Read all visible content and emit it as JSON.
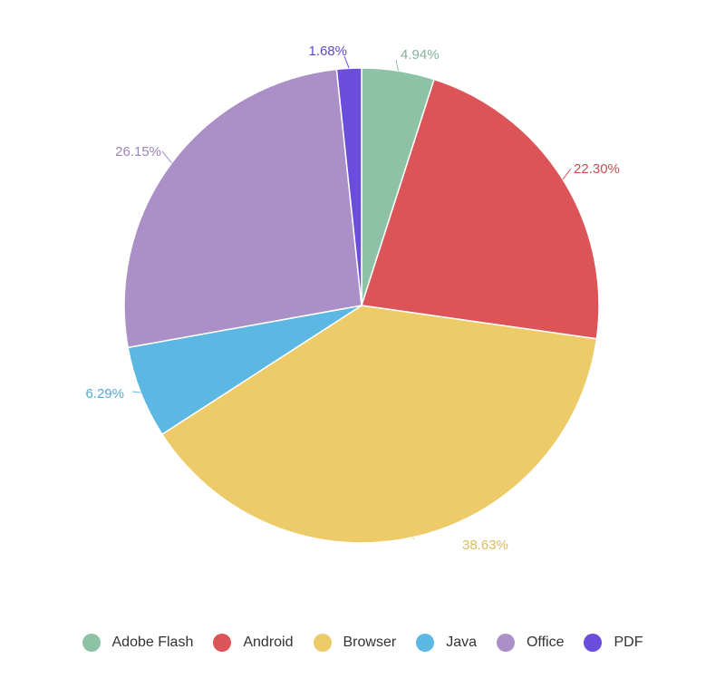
{
  "chart_data": {
    "type": "pie",
    "title": "",
    "legend_position": "bottom",
    "slices": [
      {
        "label": "Adobe Flash",
        "value": 4.94,
        "display": "4.94%",
        "color": "#8ec2a6"
      },
      {
        "label": "Android",
        "value": 22.3,
        "display": "22.30%",
        "color": "#db5457"
      },
      {
        "label": "Browser",
        "value": 38.63,
        "display": "38.63%",
        "color": "#eecb69"
      },
      {
        "label": "Java",
        "value": 6.29,
        "display": "6.29%",
        "color": "#5db7e3"
      },
      {
        "label": "Office",
        "value": 26.15,
        "display": "26.15%",
        "color": "#aa90c6"
      },
      {
        "label": "PDF",
        "value": 1.68,
        "display": "1.68%",
        "color": "#6a4ddb"
      }
    ]
  }
}
